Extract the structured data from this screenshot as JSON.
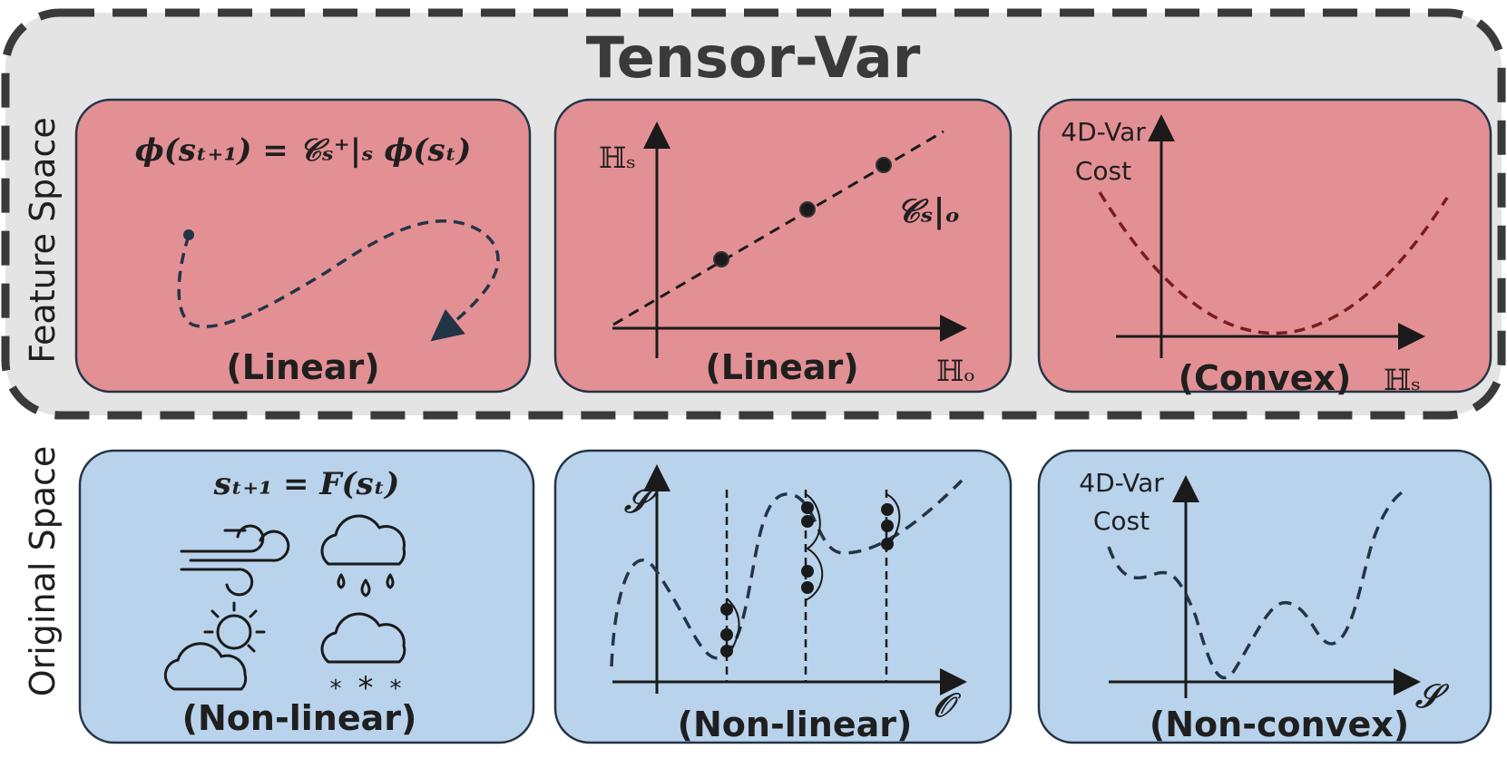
{
  "title": "Tensor-Var",
  "feature_space": {
    "side_label": "Feature Space",
    "panels": [
      {
        "equation": "ϕ(sₜ₊₁) = 𝒞ₛ⁺|ₛ ϕ(sₜ)",
        "caption": "(Linear)"
      },
      {
        "y_axis": "ℍₛ",
        "x_axis": "ℍₒ",
        "operator": "𝒞ₛ|ₒ",
        "caption": "(Linear)"
      },
      {
        "cost_line1": "4D-Var",
        "cost_line2": "Cost",
        "x_axis": "ℍₛ",
        "caption": "(Convex)"
      }
    ]
  },
  "original_space": {
    "side_label": "Original Space",
    "panels": [
      {
        "equation": "sₜ₊₁ = F(sₜ)",
        "caption": "(Non-linear)",
        "icons": [
          "wind-icon",
          "rain-cloud-icon",
          "sun-behind-cloud-icon",
          "snow-cloud-icon"
        ]
      },
      {
        "y_axis": "𝒮",
        "x_axis": "𝒪",
        "caption": "(Non-linear)"
      },
      {
        "cost_line1": "4D-Var",
        "cost_line2": "Cost",
        "x_axis": "𝒮",
        "caption": "(Non-convex)"
      }
    ]
  },
  "colors": {
    "feature_bg": "#e4e4e4",
    "feature_panel": "#e39094",
    "original_panel": "#b9d3ec",
    "curve_dark": "#243447",
    "convex_curve": "#7a1c1c",
    "border_dark": "#3a3a3a"
  }
}
